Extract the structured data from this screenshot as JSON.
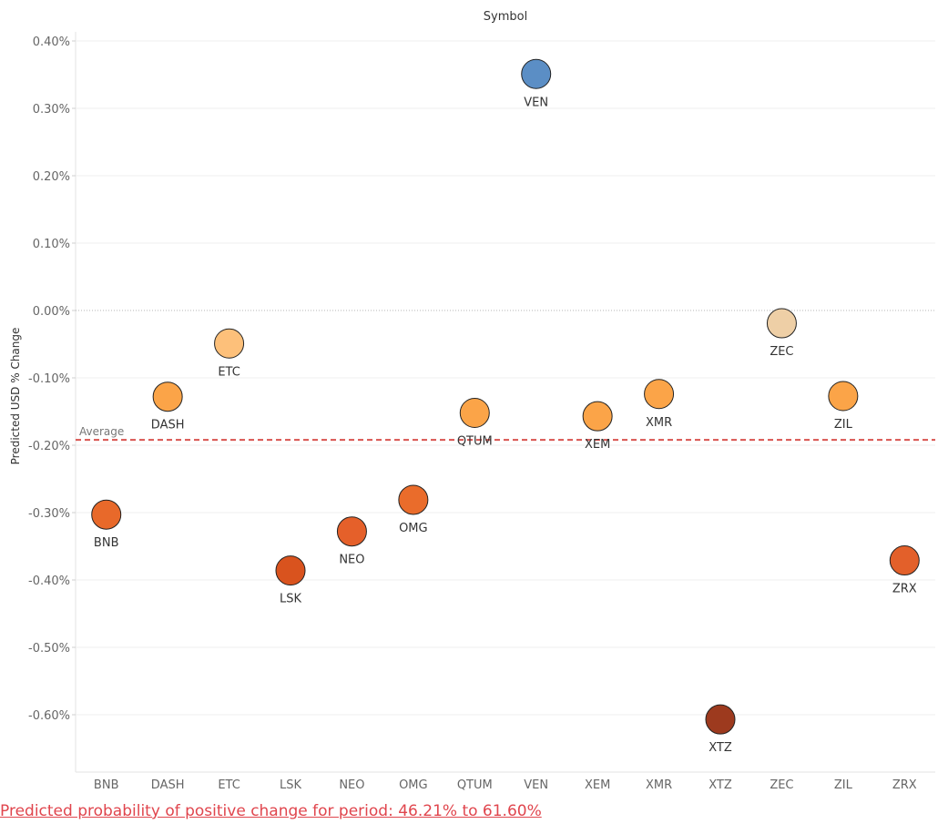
{
  "chart_data": {
    "type": "scatter",
    "title": "Symbol",
    "ylabel": "Predicted USD % Change",
    "xlabel": "",
    "ylim": [
      -0.68,
      0.42
    ],
    "yticks": [
      0.4,
      0.3,
      0.2,
      0.1,
      0.0,
      -0.1,
      -0.2,
      -0.3,
      -0.4,
      -0.5,
      -0.6
    ],
    "ytick_labels": [
      "0.40%",
      "0.30%",
      "0.20%",
      "0.10%",
      "0.00%",
      "-0.10%",
      "-0.20%",
      "-0.30%",
      "-0.40%",
      "-0.50%",
      "-0.60%"
    ],
    "categories": [
      "BNB",
      "DASH",
      "ETC",
      "LSK",
      "NEO",
      "OMG",
      "QTUM",
      "VEN",
      "XEM",
      "XMR",
      "XTZ",
      "ZEC",
      "ZIL",
      "ZRX"
    ],
    "points": [
      {
        "label": "BNB",
        "x": "BNB",
        "y": -0.303,
        "color": "#e8692a"
      },
      {
        "label": "DASH",
        "x": "DASH",
        "y": -0.128,
        "color": "#fba448"
      },
      {
        "label": "ETC",
        "x": "ETC",
        "y": -0.049,
        "color": "#fdc07a"
      },
      {
        "label": "LSK",
        "x": "LSK",
        "y": -0.386,
        "color": "#d9531e"
      },
      {
        "label": "NEO",
        "x": "NEO",
        "y": -0.328,
        "color": "#e5602a"
      },
      {
        "label": "OMG",
        "x": "OMG",
        "y": -0.281,
        "color": "#ea6c2b"
      },
      {
        "label": "QTUM",
        "x": "QTUM",
        "y": -0.152,
        "color": "#fba448"
      },
      {
        "label": "VEN",
        "x": "VEN",
        "y": 0.351,
        "color": "#5b8ec5"
      },
      {
        "label": "XEM",
        "x": "XEM",
        "y": -0.157,
        "color": "#fba448"
      },
      {
        "label": "XMR",
        "x": "XMR",
        "y": -0.124,
        "color": "#fba448"
      },
      {
        "label": "XTZ",
        "x": "XTZ",
        "y": -0.607,
        "color": "#9d3a1e"
      },
      {
        "label": "ZEC",
        "x": "ZEC",
        "y": -0.019,
        "color": "#eecfa6"
      },
      {
        "label": "ZIL",
        "x": "ZIL",
        "y": -0.127,
        "color": "#fba448"
      },
      {
        "label": "ZRX",
        "x": "ZRX",
        "y": -0.371,
        "color": "#e3602a"
      }
    ],
    "reference_line": {
      "label": "Average",
      "y": -0.192,
      "color": "#d9534f"
    },
    "grid": true
  },
  "footer": {
    "text": "Predicted probability of positive change for period:  46.21% to 61.60%"
  }
}
